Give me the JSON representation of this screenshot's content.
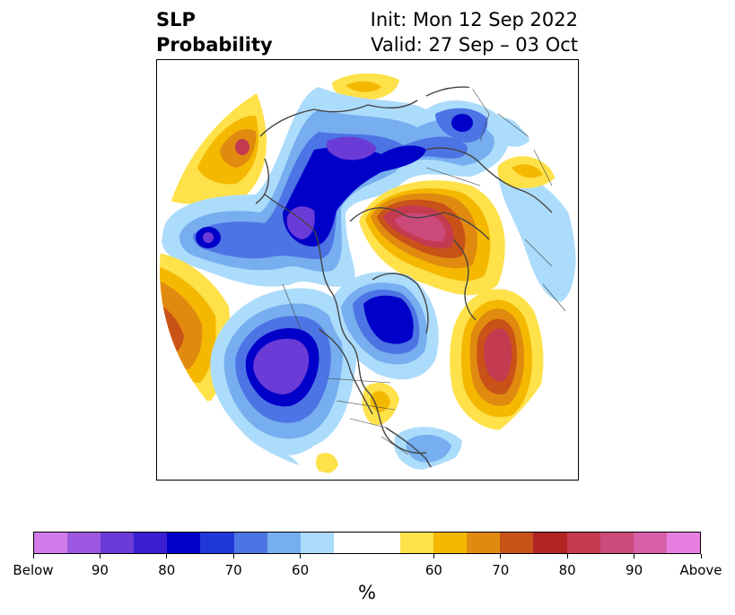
{
  "header": {
    "title_line1": "SLP",
    "title_line2": "Probability",
    "init": "Init: Mon 12 Sep 2022",
    "valid": "Valid: 27 Sep – 03 Oct"
  },
  "colorbar": {
    "unit": "%",
    "colors": [
      "#d07be9",
      "#9c58e0",
      "#6b3bd8",
      "#3a1fd0",
      "#0000c8",
      "#2038d8",
      "#4d74e4",
      "#76aef0",
      "#acdcfb",
      "#ffffff",
      "#ffe14a",
      "#f4b800",
      "#e08a10",
      "#c95218",
      "#b02424",
      "#c43a50",
      "#cc4a7a",
      "#d860a8",
      "#e87ee2"
    ],
    "labels": [
      "Below",
      "90",
      "80",
      "70",
      "60",
      "60",
      "70",
      "80",
      "90",
      "Above"
    ]
  },
  "map": {
    "projection": "north-polar-stereographic",
    "colors": {
      "coast": "#444444",
      "below_light": "#acdcfb",
      "below_mid": "#76aef0",
      "below_strong": "#4d74e4",
      "below_deep": "#0000c8",
      "below_extreme": "#6b3bd8",
      "above_light": "#ffe14a",
      "above_mid": "#f4b800",
      "above_strong": "#e08a10",
      "above_deep": "#c95218",
      "above_extreme": "#c43a50"
    }
  }
}
